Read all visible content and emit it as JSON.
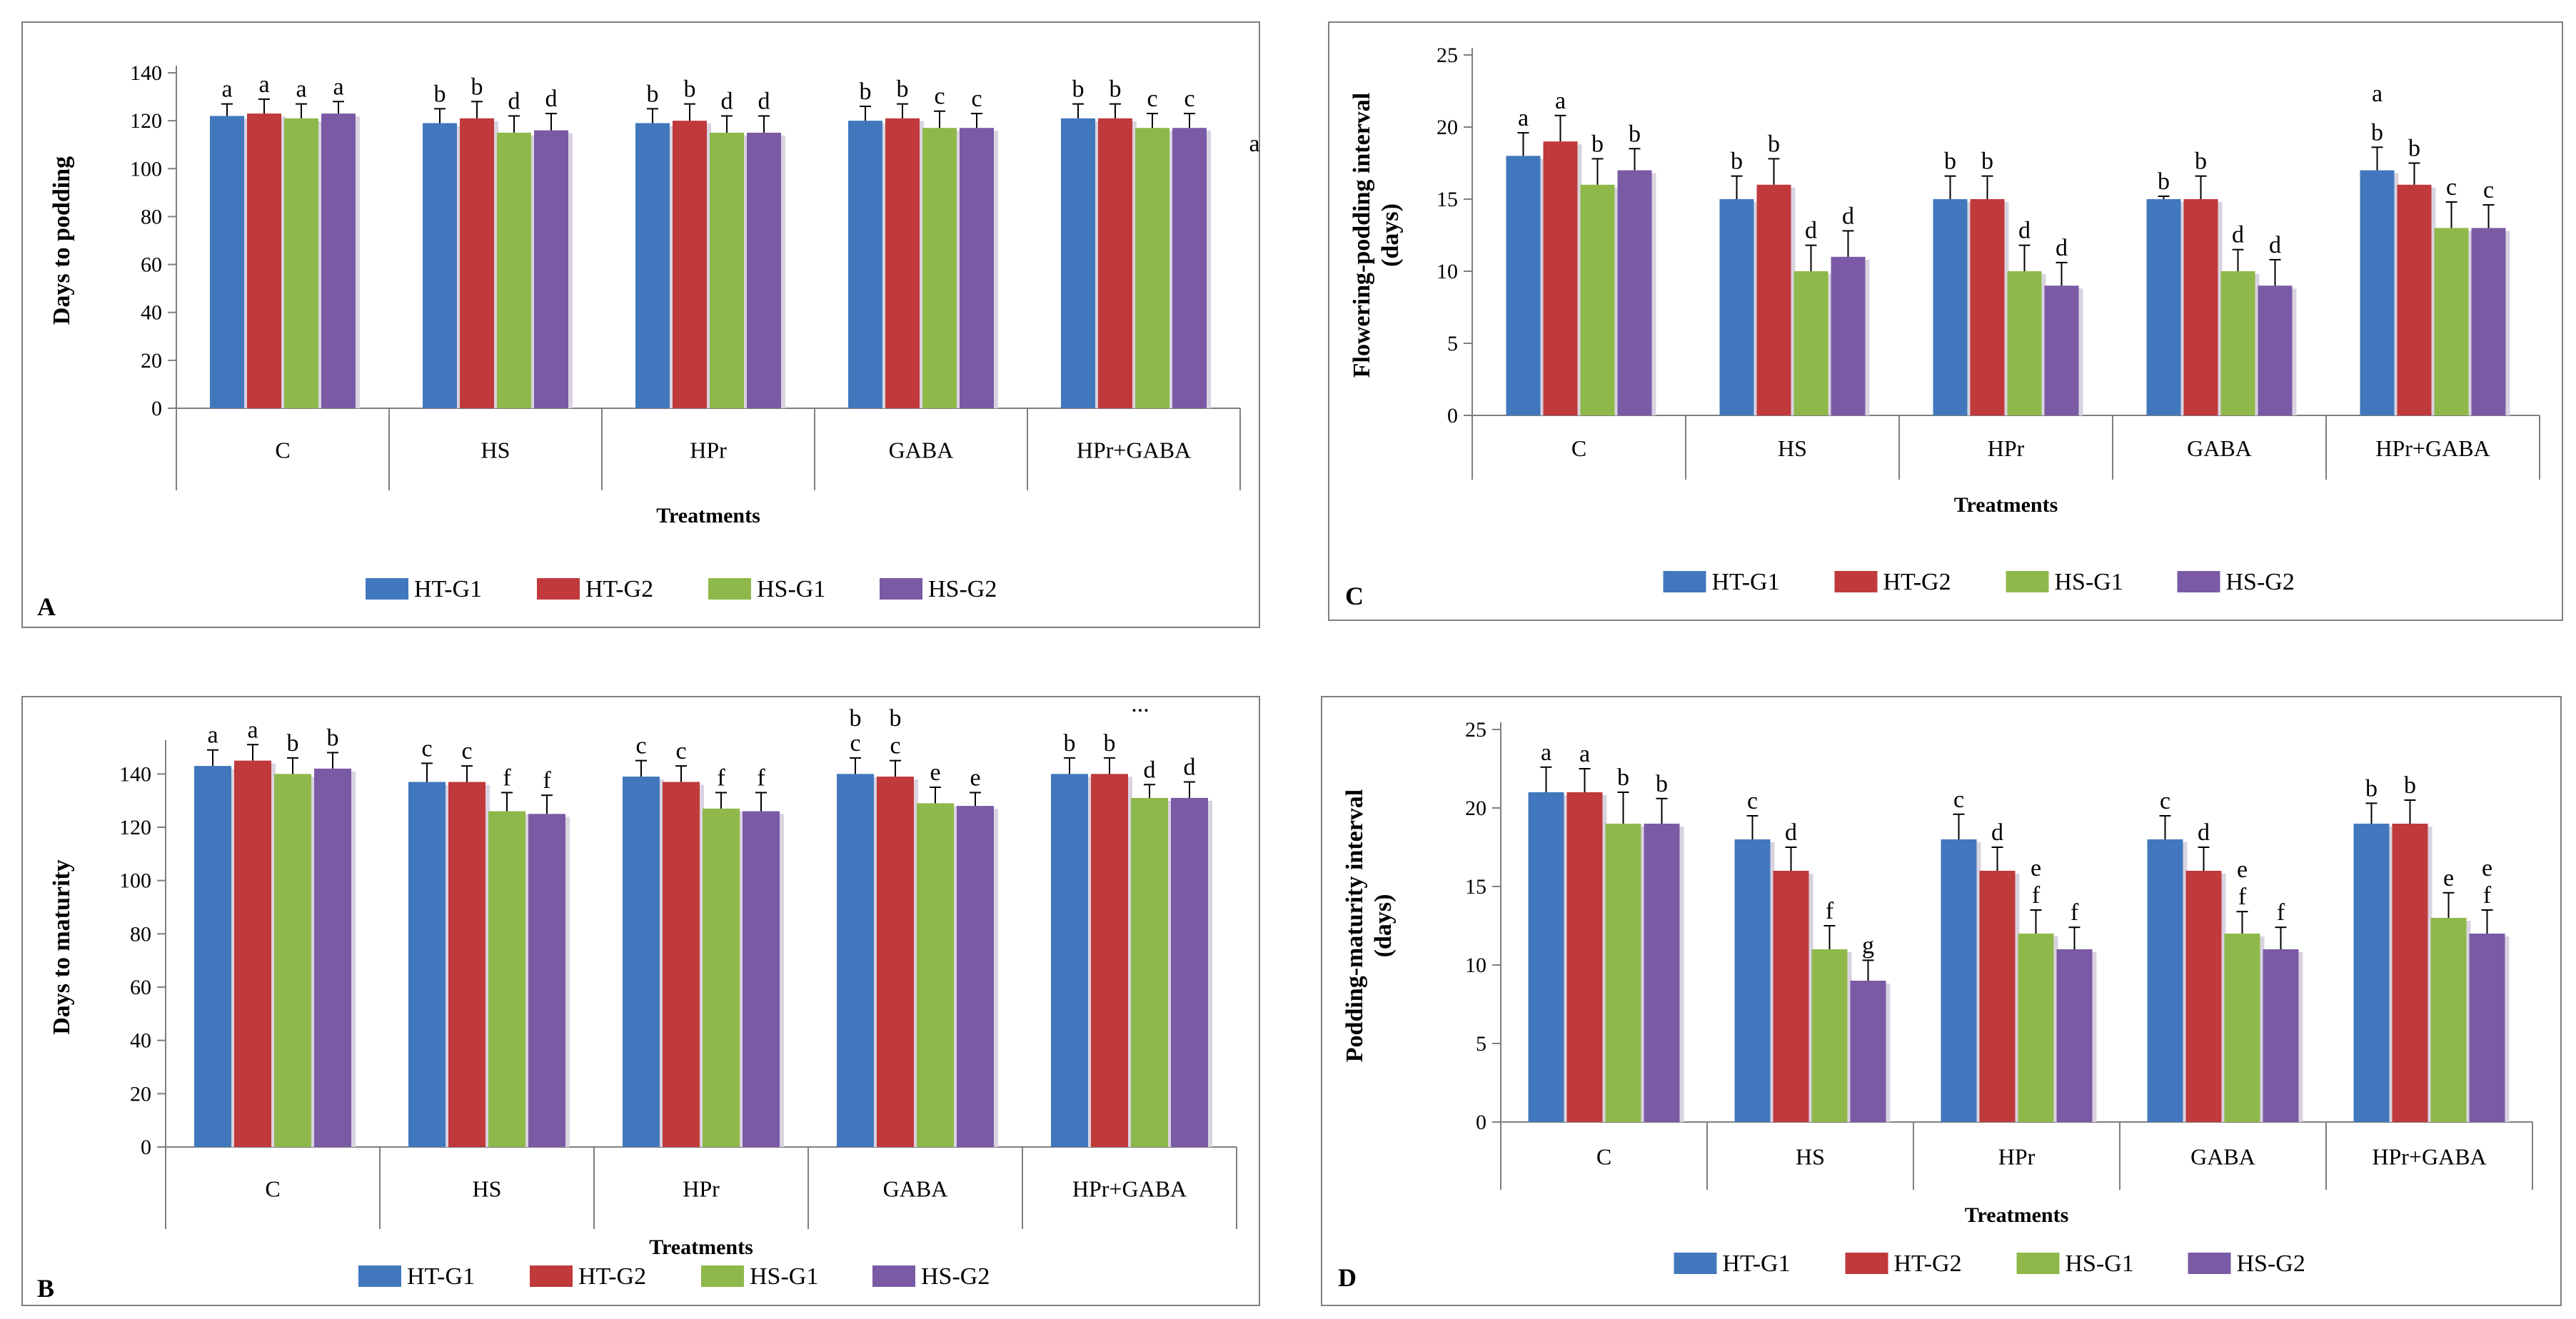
{
  "colors": {
    "series": [
      "#4178bd",
      "#c0393b",
      "#8fb84a",
      "#7b5aa5"
    ],
    "axis": "#7f7f7f",
    "text": "#000000"
  },
  "chart_data": [
    {
      "panel_label": "A",
      "type": "bar",
      "title": "",
      "xlabel": "Treatments",
      "ylabel": "Days to podding",
      "ylim": [
        0,
        140
      ],
      "yticks": [
        0,
        20,
        40,
        60,
        80,
        100,
        120,
        140
      ],
      "grid": false,
      "legend_position": "bottom",
      "categories": [
        "C",
        "HS",
        "HPr",
        "GABA",
        "HPr+GABA"
      ],
      "series": [
        {
          "name": "HT-G1",
          "values": [
            122,
            119,
            119,
            120,
            121
          ],
          "errors": [
            5,
            6,
            6,
            6,
            6
          ],
          "letters": [
            "a",
            "b",
            "b",
            "b",
            "b"
          ]
        },
        {
          "name": "HT-G2",
          "values": [
            123,
            121,
            120,
            121,
            121
          ],
          "errors": [
            6,
            7,
            7,
            6,
            6
          ],
          "letters": [
            "a",
            "b",
            "b",
            "b",
            "b"
          ]
        },
        {
          "name": "HS-G1",
          "values": [
            121,
            115,
            115,
            117,
            117
          ],
          "errors": [
            6,
            7,
            7,
            7,
            6
          ],
          "letters": [
            "a",
            "d",
            "d",
            "c",
            "c"
          ]
        },
        {
          "name": "HS-G2",
          "values": [
            123,
            116,
            115,
            117,
            117
          ],
          "errors": [
            5,
            7,
            7,
            6,
            6
          ],
          "letters": [
            "a",
            "d",
            "d",
            "c",
            "c"
          ]
        }
      ],
      "annotations": [
        "a"
      ]
    },
    {
      "panel_label": "C",
      "type": "bar",
      "title": "",
      "xlabel": "Treatments",
      "ylabel": "Flowering-podding interval (days)",
      "ylim": [
        0,
        25
      ],
      "yticks": [
        0,
        5,
        10,
        15,
        20,
        25
      ],
      "grid": false,
      "legend_position": "bottom",
      "categories": [
        "C",
        "HS",
        "HPr",
        "GABA",
        "HPr+GABA"
      ],
      "series": [
        {
          "name": "HT-G1",
          "values": [
            18,
            15,
            15,
            15,
            17
          ],
          "errors": [
            1.6,
            1.6,
            1.6,
            0.2,
            1.6
          ],
          "letters": [
            "a",
            "b",
            "b",
            "b",
            "b"
          ]
        },
        {
          "name": "HT-G2",
          "values": [
            19,
            16,
            15,
            15,
            16
          ],
          "errors": [
            1.8,
            1.8,
            1.6,
            1.6,
            1.5
          ],
          "letters": [
            "a",
            "b",
            "b",
            "b",
            "b"
          ]
        },
        {
          "name": "HS-G1",
          "values": [
            16,
            10,
            10,
            10,
            13
          ],
          "errors": [
            1.8,
            1.8,
            1.8,
            1.5,
            1.8
          ],
          "letters": [
            "b",
            "d",
            "d",
            "d",
            "c"
          ]
        },
        {
          "name": "HS-G2",
          "values": [
            17,
            11,
            9,
            9,
            13
          ],
          "errors": [
            1.5,
            1.8,
            1.6,
            1.8,
            1.6
          ],
          "letters": [
            "b",
            "d",
            "d",
            "d",
            "c"
          ]
        }
      ],
      "annotations": [
        "a"
      ]
    },
    {
      "panel_label": "B",
      "type": "bar",
      "title": "",
      "xlabel": "Treatments",
      "ylabel": "Days to maturity",
      "ylim": [
        0,
        150
      ],
      "yticks": [
        0,
        20,
        40,
        60,
        80,
        100,
        120,
        140
      ],
      "grid": false,
      "legend_position": "bottom",
      "categories": [
        "C",
        "HS",
        "HPr",
        "GABA",
        "HPr+GABA"
      ],
      "series": [
        {
          "name": "HT-G1",
          "values": [
            143,
            137,
            139,
            140,
            140
          ],
          "errors": [
            6,
            7,
            6,
            6,
            6
          ],
          "letters": [
            "a",
            "c",
            "c",
            "c",
            "b"
          ]
        },
        {
          "name": "HT-G2",
          "values": [
            145,
            137,
            137,
            139,
            140
          ],
          "errors": [
            6,
            6,
            6,
            6,
            6
          ],
          "letters": [
            "a",
            "c",
            "c",
            "c",
            "b"
          ]
        },
        {
          "name": "HS-G1",
          "values": [
            140,
            126,
            127,
            129,
            131
          ],
          "errors": [
            6,
            7,
            6,
            6,
            5
          ],
          "letters": [
            "b",
            "f",
            "f",
            "e",
            "d"
          ]
        },
        {
          "name": "HS-G2",
          "values": [
            142,
            125,
            126,
            128,
            131
          ],
          "errors": [
            6,
            7,
            7,
            5,
            6
          ],
          "letters": [
            "b",
            "f",
            "f",
            "e",
            "d"
          ]
        }
      ],
      "extra_letters": [
        "b",
        "b"
      ],
      "annotations": [
        "..."
      ]
    },
    {
      "panel_label": "D",
      "type": "bar",
      "title": "",
      "xlabel": "Treatments",
      "ylabel": "Podding-maturity interval (days)",
      "ylim": [
        0,
        25
      ],
      "yticks": [
        0,
        5,
        10,
        15,
        20,
        25
      ],
      "grid": false,
      "legend_position": "bottom",
      "categories": [
        "C",
        "HS",
        "HPr",
        "GABA",
        "HPr+GABA"
      ],
      "series": [
        {
          "name": "HT-G1",
          "values": [
            21,
            18,
            18,
            18,
            19
          ],
          "errors": [
            1.6,
            1.5,
            1.6,
            1.5,
            1.3
          ],
          "letters": [
            "a",
            "c",
            "c",
            "c",
            "b"
          ]
        },
        {
          "name": "HT-G2",
          "values": [
            21,
            16,
            16,
            16,
            19
          ],
          "errors": [
            1.5,
            1.5,
            1.5,
            1.5,
            1.5
          ],
          "letters": [
            "a",
            "d",
            "d",
            "d",
            "b"
          ]
        },
        {
          "name": "HS-G1",
          "values": [
            19,
            11,
            12,
            12,
            13
          ],
          "errors": [
            2.0,
            1.5,
            1.5,
            1.4,
            1.6
          ],
          "letters": [
            "b",
            "f",
            "f",
            "f",
            "e"
          ]
        },
        {
          "name": "HS-G2",
          "values": [
            19,
            9,
            11,
            11,
            12
          ],
          "errors": [
            1.6,
            1.3,
            1.4,
            1.4,
            1.5
          ],
          "letters": [
            "b",
            "g",
            "f",
            "f",
            "f"
          ]
        }
      ],
      "extra_letters_per_series": [
        [],
        [],
        [
          null,
          null,
          "e",
          "e",
          null
        ],
        [
          null,
          null,
          null,
          null,
          "e"
        ]
      ]
    }
  ]
}
